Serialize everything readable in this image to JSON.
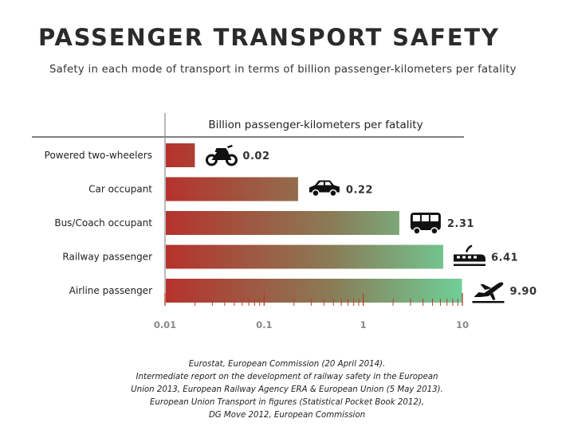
{
  "header": {
    "title": "PASSENGER TRANSPORT SAFETY",
    "subtitle": "Safety in each mode of transport in terms of billion passenger-kilometers per fatality"
  },
  "chart_data": {
    "type": "bar",
    "orientation": "horizontal",
    "x_scale": "log",
    "xlim": [
      0.01,
      10
    ],
    "xlabel": "Billion passenger-kilometers per fatality",
    "x_ticks": [
      0.01,
      0.1,
      1,
      10
    ],
    "x_tick_labels": [
      "0.01",
      "0.1",
      "1",
      "10"
    ],
    "categories": [
      "Powered two-wheelers",
      "Car occupant",
      "Bus/Coach occupant",
      "Railway passenger",
      "Airline passenger"
    ],
    "values": [
      0.02,
      0.22,
      2.31,
      6.41,
      9.9
    ],
    "value_labels": [
      "0.02",
      "0.22",
      "2.31",
      "6.41",
      "9.90"
    ],
    "icons": [
      "motorcycle-icon",
      "car-icon",
      "bus-icon",
      "train-icon",
      "airplane-icon"
    ],
    "colors": {
      "low": "#b5322c",
      "high": "#6fcf97"
    }
  },
  "source": {
    "lines": [
      "Eurostat, European Commission (20 April 2014).",
      "Intermediate report on the development of railway safety in the European",
      "Union 2013, European Railway Agency ERA & European Union (5 May 2013).",
      "European Union Transport in figures (Statistical Pocket Book 2012),",
      "DG Move 2012, European Commission"
    ]
  }
}
